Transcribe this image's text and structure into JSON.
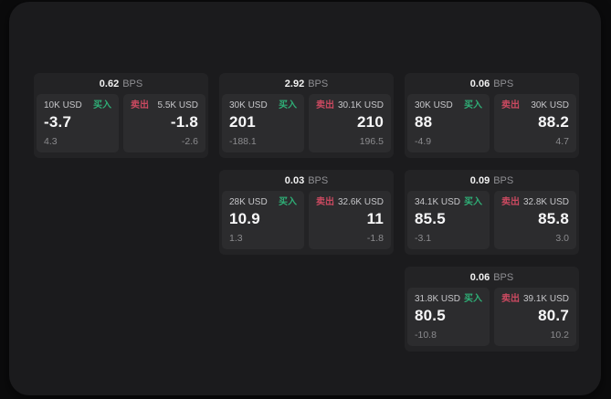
{
  "colors": {
    "outer_bg": "#0b0b0c",
    "window_bg": "#1b1b1d",
    "card_bg": "#232325",
    "panel_bg": "#2c2c2e",
    "buy_green": "#2fae76",
    "sell_red": "#ca4960",
    "text_primary": "#f7f7f8",
    "text_secondary": "#c6c6c9",
    "text_muted": "#8b8b8e"
  },
  "labels": {
    "bps_suffix": "BPS",
    "buy": "买入",
    "sell": "卖出"
  },
  "cards": [
    {
      "col": 1,
      "row": 1,
      "bps": "0.62",
      "buy": {
        "amount": "10K USD",
        "value": "-3.7",
        "delta": "4.3"
      },
      "sell": {
        "amount": "5.5K USD",
        "value": "-1.8",
        "delta": "-2.6"
      }
    },
    {
      "col": 2,
      "row": 1,
      "bps": "2.92",
      "buy": {
        "amount": "30K USD",
        "value": "201",
        "delta": "-188.1"
      },
      "sell": {
        "amount": "30.1K USD",
        "value": "210",
        "delta": "196.5"
      }
    },
    {
      "col": 3,
      "row": 1,
      "bps": "0.06",
      "buy": {
        "amount": "30K USD",
        "value": "88",
        "delta": "-4.9"
      },
      "sell": {
        "amount": "30K USD",
        "value": "88.2",
        "delta": "4.7"
      }
    },
    {
      "col": 2,
      "row": 2,
      "bps": "0.03",
      "buy": {
        "amount": "28K USD",
        "value": "10.9",
        "delta": "1.3"
      },
      "sell": {
        "amount": "32.6K USD",
        "value": "11",
        "delta": "-1.8"
      }
    },
    {
      "col": 3,
      "row": 2,
      "bps": "0.09",
      "buy": {
        "amount": "34.1K USD",
        "value": "85.5",
        "delta": "-3.1"
      },
      "sell": {
        "amount": "32.8K USD",
        "value": "85.8",
        "delta": "3.0"
      }
    },
    {
      "col": 3,
      "row": 3,
      "bps": "0.06",
      "buy": {
        "amount": "31.8K USD",
        "value": "80.5",
        "delta": "-10.8"
      },
      "sell": {
        "amount": "39.1K USD",
        "value": "80.7",
        "delta": "10.2"
      }
    }
  ]
}
